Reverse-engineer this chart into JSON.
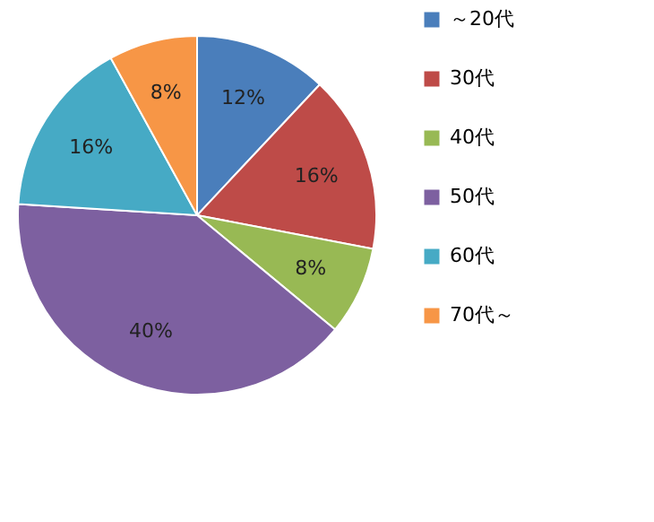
{
  "chart_data": {
    "type": "pie",
    "categories": [
      "～20代",
      "30代",
      "40代",
      "50代",
      "60代",
      "70代～"
    ],
    "values": [
      12,
      16,
      8,
      40,
      16,
      8
    ],
    "colors": [
      "#4a7ebb",
      "#be4b48",
      "#98b954",
      "#7d60a0",
      "#46aac5",
      "#f79646"
    ],
    "value_labels": [
      "12%",
      "16%",
      "8%",
      "40%",
      "16%",
      "8%"
    ],
    "legend": "right"
  }
}
